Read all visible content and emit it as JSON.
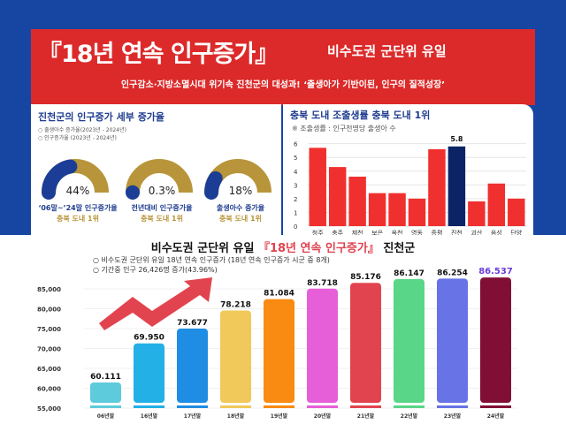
{
  "header": {
    "title": "『18년 연속 인구증가』",
    "subtitle": "비수도권 군단위 유일",
    "tagline": "인구감소·지방소멸시대 위기속 진천군의 대성과! ‘출생아가 기반이된, 인구의 질적성장’"
  },
  "left_panel": {
    "title": "진천군의 인구증가 세부 증가율",
    "notes": [
      "○ 출생아수 증가율(2023년 - 2024년)",
      "○ 인구증가율 (2023년 - 2024년)"
    ],
    "gauges": [
      {
        "value": "44%",
        "fraction": 0.44,
        "label": "‘06말~’24말 인구증가율",
        "sub": "충북 도내 1위"
      },
      {
        "value": "0.3%",
        "fraction": 0.003,
        "label": "전년대비 인구증가율",
        "sub": "충북 도내 1위"
      },
      {
        "value": "18%",
        "fraction": 0.18,
        "label": "출생아수 증가율",
        "sub": "충북 도내 1위"
      }
    ],
    "colors": {
      "fill": "#1b3d96",
      "track": "#b8953a"
    }
  },
  "chart_data": [
    {
      "type": "bar",
      "title": "충북 도내 조출생률 충북 도내 1위",
      "note": "※ 조출생률 : 인구천명당 출생아 수",
      "categories": [
        "청주",
        "충주",
        "제천",
        "보은",
        "옥천",
        "영동",
        "증평",
        "진천",
        "괴산",
        "음성",
        "단양"
      ],
      "values": [
        5.7,
        4.3,
        3.6,
        2.4,
        2.4,
        2.0,
        5.6,
        5.8,
        1.8,
        3.1,
        2.0
      ],
      "highlight": "진천",
      "highlight_label": "5.8",
      "yticks": [
        "0",
        "1",
        "2",
        "3",
        "4",
        "5",
        "6"
      ],
      "ylim": [
        0,
        6.3
      ],
      "grid": true,
      "colors": {
        "bar": "#f0302f",
        "highlight": "#0c2466"
      }
    },
    {
      "type": "bar",
      "title_parts": [
        "비수도권 군단위 유일 ",
        "『18년 연속 인구증가』",
        " 진천군"
      ],
      "notes": [
        "○ 비수도권 군단위 유일 18년 연속 인구증가 (18년 연속 인구증가 시군 중 8개)",
        "○ 기간중 인구 26,426명 증가(43.96%)"
      ],
      "categories": [
        "06년말",
        "16년말",
        "17년말",
        "18년말",
        "19년말",
        "20년말",
        "21년말",
        "22년말",
        "23년말",
        "24년말"
      ],
      "values": [
        60111,
        69950,
        73677,
        78218,
        81084,
        83718,
        85176,
        86147,
        86254,
        86537
      ],
      "labels": [
        "60.111",
        "69.950",
        "73.677",
        "78.218",
        "81.084",
        "83.718",
        "85.176",
        "86.147",
        "86.254",
        "86.537"
      ],
      "yticks": [
        "55,000",
        "60,000",
        "65,000",
        "70,000",
        "75,000",
        "80,000",
        "85,000"
      ],
      "ylim": [
        55000,
        88000
      ],
      "grid": true,
      "colors": [
        "#5ecbdc",
        "#22b0e6",
        "#1f8de3",
        "#f0c95a",
        "#f98a12",
        "#e75fd8",
        "#e2444f",
        "#5ad688",
        "#6873e6",
        "#810f35"
      ],
      "last_label_color": "#6a3fd8",
      "arrow_color": "#e2444f"
    }
  ]
}
